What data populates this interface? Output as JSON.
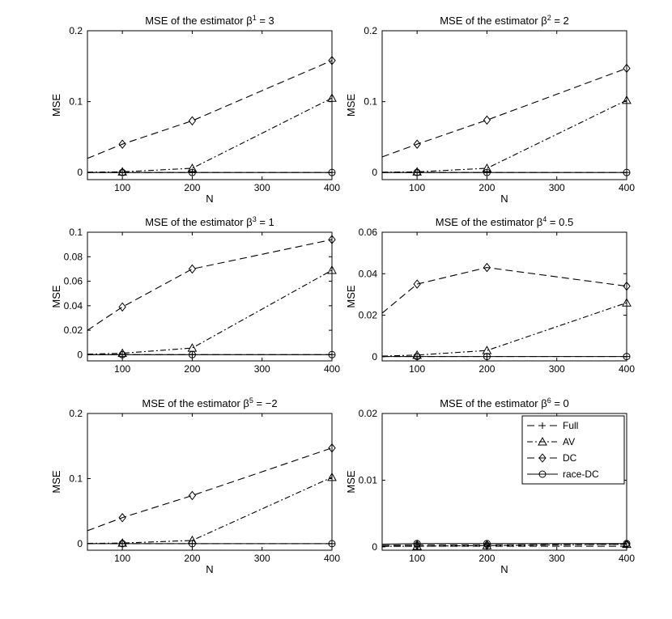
{
  "chart_data": [
    {
      "type": "line",
      "title": "MSE of the estimator β¹ = 3",
      "title_main": "MSE of the estimator β",
      "title_sup": "1",
      "title_rest": " = 3",
      "xlabel": "N",
      "ylabel": "MSE",
      "xlim": [
        50,
        400
      ],
      "ylim": [
        -0.01,
        0.2
      ],
      "xticks": [
        "100",
        "200",
        "300",
        "400"
      ],
      "yticks": [
        "0",
        "0.1",
        "0.2"
      ],
      "ytick_values": [
        0,
        0.1,
        0.2
      ],
      "grid": false,
      "x": [
        50,
        100,
        200,
        400
      ],
      "series": [
        {
          "name": "Full",
          "values": [
            0.0001,
            0.0001,
            0.0001,
            0.0001
          ]
        },
        {
          "name": "AV",
          "values": [
            0.0005,
            0.001,
            0.006,
            0.105
          ]
        },
        {
          "name": "DC",
          "values": [
            0.02,
            0.04,
            0.073,
            0.158
          ]
        },
        {
          "name": "race-DC",
          "values": [
            0.0001,
            0.0001,
            0.0001,
            0.0001
          ]
        }
      ]
    },
    {
      "type": "line",
      "title": "MSE of the estimator β² = 2",
      "title_main": "MSE of the estimator β",
      "title_sup": "2",
      "title_rest": " = 2",
      "xlabel": "N",
      "ylabel": "MSE",
      "xlim": [
        50,
        400
      ],
      "ylim": [
        -0.01,
        0.2
      ],
      "xticks": [
        "100",
        "200",
        "300",
        "400"
      ],
      "yticks": [
        "0",
        "0.1",
        "0.2"
      ],
      "ytick_values": [
        0,
        0.1,
        0.2
      ],
      "grid": false,
      "x": [
        50,
        100,
        200,
        400
      ],
      "series": [
        {
          "name": "Full",
          "values": [
            0.0001,
            0.0001,
            0.0001,
            0.0001
          ]
        },
        {
          "name": "AV",
          "values": [
            0.0005,
            0.001,
            0.006,
            0.102
          ]
        },
        {
          "name": "DC",
          "values": [
            0.022,
            0.04,
            0.074,
            0.147
          ]
        },
        {
          "name": "race-DC",
          "values": [
            0.0001,
            0.0001,
            0.0001,
            0.0001
          ]
        }
      ]
    },
    {
      "type": "line",
      "title": "MSE of the estimator β³ = 1",
      "title_main": "MSE of the estimator β",
      "title_sup": "3",
      "title_rest": " = 1",
      "xlabel": "",
      "ylabel": "MSE",
      "xlim": [
        50,
        400
      ],
      "ylim": [
        -0.005,
        0.1
      ],
      "xticks": [
        "100",
        "200",
        "300",
        "400"
      ],
      "yticks": [
        "0",
        "0.02",
        "0.04",
        "0.06",
        "0.08",
        "0.1"
      ],
      "ytick_values": [
        0,
        0.02,
        0.04,
        0.06,
        0.08,
        0.1
      ],
      "grid": false,
      "x": [
        50,
        100,
        200,
        400
      ],
      "series": [
        {
          "name": "Full",
          "values": [
            0.0001,
            0.0001,
            0.0001,
            0.0001
          ]
        },
        {
          "name": "AV",
          "values": [
            0.0005,
            0.0012,
            0.0055,
            0.069
          ]
        },
        {
          "name": "DC",
          "values": [
            0.02,
            0.039,
            0.07,
            0.094
          ]
        },
        {
          "name": "race-DC",
          "values": [
            0.0001,
            0.0001,
            0.0001,
            0.0001
          ]
        }
      ]
    },
    {
      "type": "line",
      "title": "MSE of the estimator β⁴ = 0.5",
      "title_main": "MSE of the estimator β",
      "title_sup": "4",
      "title_rest": " = 0.5",
      "xlabel": "",
      "ylabel": "MSE",
      "xlim": [
        50,
        400
      ],
      "ylim": [
        -0.002,
        0.06
      ],
      "xticks": [
        "100",
        "200",
        "300",
        "400"
      ],
      "yticks": [
        "0",
        "0.02",
        "0.04",
        "0.06"
      ],
      "ytick_values": [
        0,
        0.02,
        0.04,
        0.06
      ],
      "grid": false,
      "x": [
        50,
        100,
        200,
        400
      ],
      "series": [
        {
          "name": "Full",
          "values": [
            0.0001,
            0.0001,
            0.0001,
            0.0001
          ]
        },
        {
          "name": "AV",
          "values": [
            0.0003,
            0.0008,
            0.003,
            0.026
          ]
        },
        {
          "name": "DC",
          "values": [
            0.021,
            0.035,
            0.043,
            0.034
          ]
        },
        {
          "name": "race-DC",
          "values": [
            0.0001,
            0.0001,
            0.0001,
            0.0001
          ]
        }
      ]
    },
    {
      "type": "line",
      "title": "MSE of the estimator β⁵ = −2",
      "title_main": "MSE of the estimator β",
      "title_sup": "5",
      "title_rest": " = −2",
      "xlabel": "N",
      "ylabel": "MSE",
      "xlim": [
        50,
        400
      ],
      "ylim": [
        -0.01,
        0.2
      ],
      "xticks": [
        "100",
        "200",
        "300",
        "400"
      ],
      "yticks": [
        "0",
        "0.1",
        "0.2"
      ],
      "ytick_values": [
        0,
        0.1,
        0.2
      ],
      "grid": false,
      "x": [
        50,
        100,
        200,
        400
      ],
      "series": [
        {
          "name": "Full",
          "values": [
            0.0001,
            0.0001,
            0.0001,
            0.0001
          ]
        },
        {
          "name": "AV",
          "values": [
            0.0005,
            0.001,
            0.005,
            0.102
          ]
        },
        {
          "name": "DC",
          "values": [
            0.02,
            0.04,
            0.074,
            0.147
          ]
        },
        {
          "name": "race-DC",
          "values": [
            0.0001,
            0.0001,
            0.0001,
            0.0001
          ]
        }
      ]
    },
    {
      "type": "line",
      "title": "MSE of the estimator β⁶ = 0",
      "title_main": "MSE of the estimator β",
      "title_sup": "6",
      "title_rest": " = 0",
      "xlabel": "N",
      "ylabel": "MSE",
      "xlim": [
        50,
        400
      ],
      "ylim": [
        -0.0005,
        0.02
      ],
      "xticks": [
        "100",
        "200",
        "300",
        "400"
      ],
      "yticks": [
        "0",
        "0.01",
        "0.02"
      ],
      "ytick_values": [
        0,
        0.01,
        0.02
      ],
      "grid": false,
      "legend": "top-right",
      "x": [
        50,
        100,
        200,
        400
      ],
      "series": [
        {
          "name": "Full",
          "values": [
            0.0001,
            0.0001,
            0.0001,
            0.0001
          ]
        },
        {
          "name": "AV",
          "values": [
            0.0001,
            0.0001,
            0.0002,
            0.0004
          ]
        },
        {
          "name": "DC",
          "values": [
            0.0002,
            0.0003,
            0.0003,
            0.0004
          ]
        },
        {
          "name": "race-DC",
          "values": [
            0.0004,
            0.0005,
            0.0005,
            0.0005
          ]
        }
      ]
    }
  ],
  "legend_entries": [
    "Full",
    "AV",
    "DC",
    "race-DC"
  ]
}
